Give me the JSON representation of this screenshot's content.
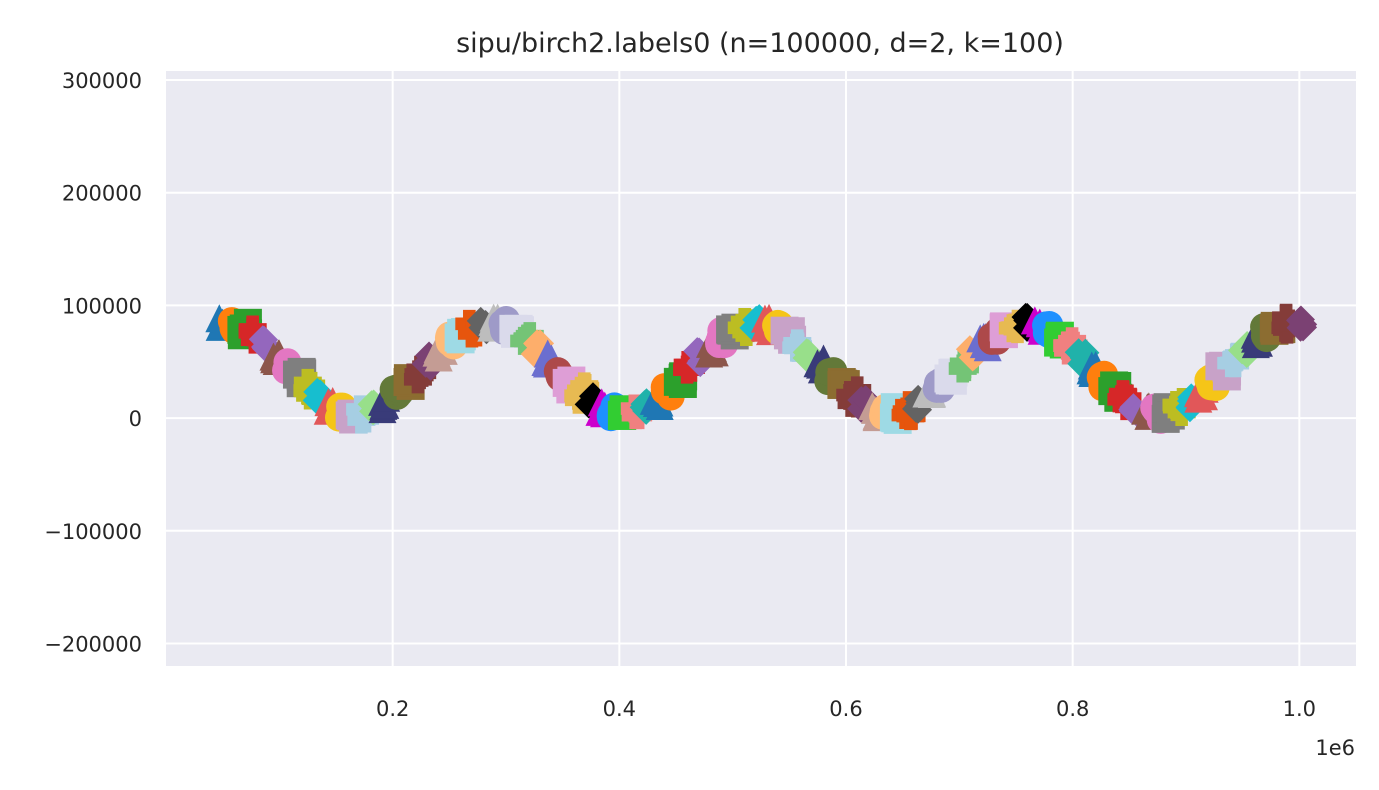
{
  "chart_data": {
    "type": "scatter",
    "title": "sipu/birch2.labels0 (n=100000, d=2, k=100)",
    "xlabel": "",
    "ylabel": "",
    "xlim": [
      0,
      1050000
    ],
    "ylim": [
      -220000,
      308000
    ],
    "x_scale_label": "1e6",
    "x_ticks": [
      {
        "value": 200000,
        "label": "0.2"
      },
      {
        "value": 400000,
        "label": "0.4"
      },
      {
        "value": 600000,
        "label": "0.6"
      },
      {
        "value": 800000,
        "label": "0.8"
      },
      {
        "value": 1000000,
        "label": "1.0"
      }
    ],
    "y_ticks": [
      {
        "value": 300000,
        "label": "300000"
      },
      {
        "value": 200000,
        "label": "200000"
      },
      {
        "value": 100000,
        "label": "100000"
      },
      {
        "value": 0,
        "label": "0"
      },
      {
        "value": -100000,
        "label": "−100000"
      },
      {
        "value": -200000,
        "label": "−200000"
      }
    ],
    "grid": true,
    "background": "#eaeaf2",
    "gridcolor": "#ffffff",
    "curve": {
      "description": "sine-shaped chain of 100 clusters",
      "x_start": 50000,
      "x_end": 1000000,
      "center": 44000,
      "amplitude": 40000,
      "period": 236000,
      "phase_x": 50000
    },
    "palette": [
      "#1f77b4",
      "#ff7f0e",
      "#2ca02c",
      "#d62728",
      "#9467bd",
      "#8c564b",
      "#e377c2",
      "#7f7f7f",
      "#bcbd22",
      "#17becf",
      "#e15759",
      "#f5c518",
      "#c8a2c8",
      "#a6cee3",
      "#98df8a",
      "#393b79",
      "#637939",
      "#8c6d31",
      "#843c39",
      "#7b4173",
      "#c49c94",
      "#ffbb78",
      "#9edae5",
      "#e6550d",
      "#636363",
      "#bdbdbd",
      "#9e9ac8",
      "#dadaeb",
      "#74c476",
      "#fdae6b",
      "#6b6ecf",
      "#ad494a",
      "#de9ed6",
      "#e7ba52",
      "#000000",
      "#cc00cc",
      "#1e90ff",
      "#32cd32",
      "#f08080",
      "#20b2aa"
    ],
    "markers": [
      "triangle",
      "circle",
      "square",
      "plus",
      "diamond"
    ]
  }
}
